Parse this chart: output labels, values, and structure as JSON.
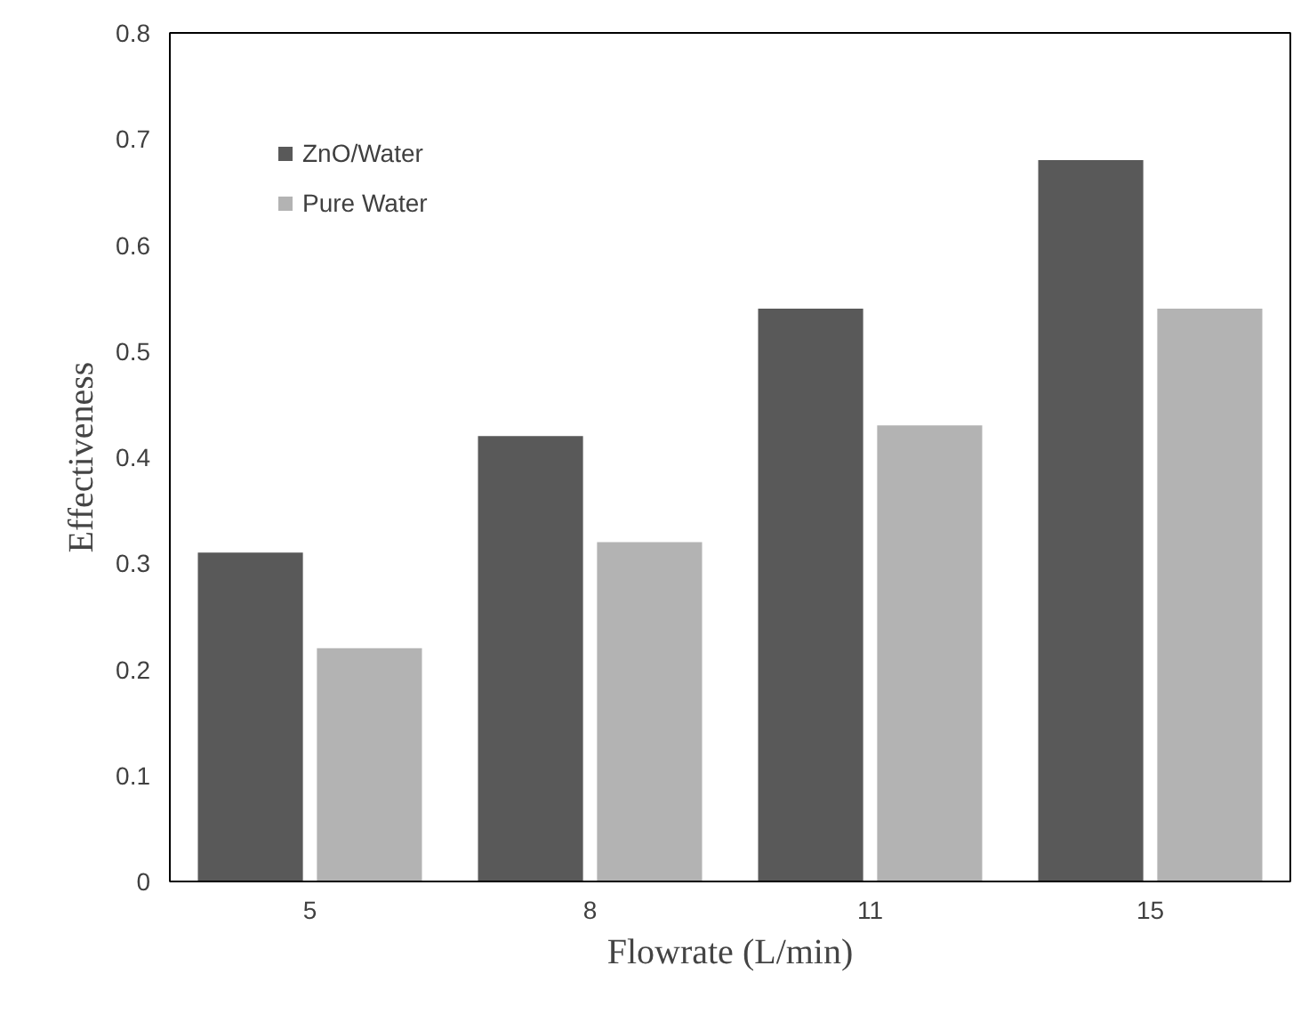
{
  "chart_data": {
    "type": "bar",
    "xlabel": "Flowrate (L/min)",
    "ylabel": "Effectiveness",
    "categories": [
      "5",
      "8",
      "11",
      "15"
    ],
    "series": [
      {
        "name": "ZnO/Water",
        "color": "#595959",
        "values": [
          0.31,
          0.42,
          0.54,
          0.68
        ]
      },
      {
        "name": "Pure Water",
        "color": "#b3b3b3",
        "values": [
          0.22,
          0.32,
          0.43,
          0.54
        ]
      }
    ],
    "ylim": [
      0,
      0.8
    ],
    "yticks": [
      {
        "value": 0,
        "label": "0"
      },
      0.1,
      0.2,
      0.3,
      0.4,
      0.5,
      0.6,
      0.7,
      0.8
    ],
    "grid": false,
    "legend": "top left"
  }
}
